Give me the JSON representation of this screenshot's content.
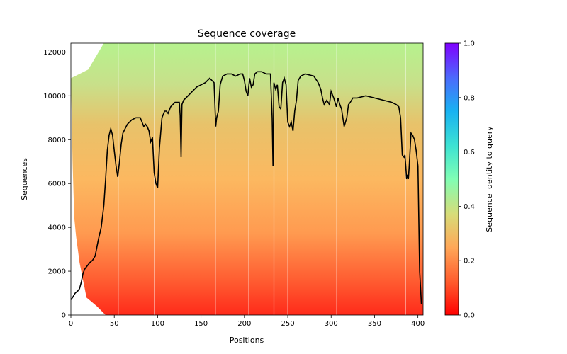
{
  "chart_data": {
    "type": "heatmap",
    "title": "Sequence coverage",
    "xlabel": "Positions",
    "ylabel": "Sequences",
    "xlim": [
      0,
      406
    ],
    "ylim": [
      0,
      12400
    ],
    "xticks": [
      0,
      50,
      100,
      150,
      200,
      250,
      300,
      350,
      400
    ],
    "xtick_labels": [
      "0",
      "50",
      "100",
      "150",
      "200",
      "250",
      "300",
      "350",
      "400"
    ],
    "yticks": [
      0,
      2000,
      4000,
      6000,
      8000,
      10000,
      12000
    ],
    "ytick_labels": [
      "0",
      "2000",
      "4000",
      "6000",
      "8000",
      "10000",
      "12000"
    ],
    "colorbar": {
      "label": "Sequence identity to query",
      "range": [
        0.0,
        1.0
      ],
      "ticks": [
        0.0,
        0.2,
        0.4,
        0.6,
        0.8,
        1.0
      ],
      "tick_labels": [
        "0.0",
        "0.2",
        "0.4",
        "0.6",
        "0.8",
        "1.0"
      ],
      "colormap": "rainbow_r"
    },
    "alignment_start_profile": {
      "y": [
        0,
        400,
        800,
        1200,
        1600,
        2000,
        2400,
        3000,
        3600,
        4400,
        5600,
        7000,
        9000,
        10800,
        11200,
        12400
      ],
      "start_position": [
        40,
        30,
        18,
        16,
        14,
        12,
        10,
        8,
        6,
        4,
        3,
        2,
        1,
        0,
        20,
        38
      ]
    },
    "coverage_line": {
      "name": "coverage",
      "color": "#000000",
      "x": [
        0,
        2,
        5,
        8,
        10,
        12,
        14,
        16,
        18,
        20,
        22,
        25,
        28,
        30,
        32,
        35,
        38,
        40,
        42,
        44,
        46,
        48,
        50,
        52,
        54,
        56,
        58,
        60,
        65,
        70,
        75,
        80,
        82,
        84,
        86,
        88,
        90,
        92,
        94,
        96,
        98,
        100,
        102,
        105,
        108,
        110,
        112,
        115,
        120,
        125,
        126,
        127,
        128,
        130,
        135,
        140,
        145,
        150,
        155,
        160,
        165,
        167,
        168,
        170,
        172,
        175,
        180,
        185,
        190,
        195,
        198,
        200,
        202,
        204,
        206,
        208,
        210,
        212,
        215,
        220,
        225,
        230,
        232,
        233,
        234,
        236,
        238,
        240,
        242,
        244,
        246,
        248,
        250,
        252,
        254,
        256,
        258,
        260,
        262,
        265,
        270,
        280,
        285,
        288,
        290,
        292,
        295,
        298,
        300,
        303,
        306,
        308,
        310,
        312,
        315,
        318,
        320,
        322,
        325,
        330,
        340,
        350,
        360,
        370,
        375,
        378,
        380,
        382,
        384,
        385,
        386,
        387,
        388,
        389,
        390,
        392,
        394,
        396,
        398,
        400,
        402,
        404,
        406
      ],
      "y": [
        700,
        800,
        1000,
        1100,
        1200,
        1500,
        1900,
        2100,
        2200,
        2300,
        2400,
        2500,
        2700,
        3100,
        3500,
        4000,
        5000,
        6200,
        7500,
        8200,
        8500,
        8200,
        7500,
        6800,
        6300,
        7000,
        7800,
        8300,
        8700,
        8900,
        9000,
        9000,
        8800,
        8600,
        8700,
        8600,
        8400,
        7900,
        8100,
        6500,
        6000,
        5800,
        7600,
        9000,
        9300,
        9300,
        9200,
        9500,
        9700,
        9700,
        9100,
        7200,
        9600,
        9800,
        10000,
        10200,
        10400,
        10500,
        10600,
        10800,
        10600,
        8600,
        9000,
        9300,
        10500,
        10900,
        11000,
        11000,
        10900,
        11000,
        11000,
        10700,
        10200,
        10000,
        10800,
        10400,
        10500,
        11000,
        11100,
        11100,
        11000,
        11000,
        9000,
        6800,
        10600,
        10300,
        10500,
        9500,
        9400,
        10600,
        10800,
        10500,
        8800,
        8600,
        8800,
        8400,
        9300,
        9800,
        10700,
        10900,
        11000,
        10900,
        10600,
        10300,
        9900,
        9600,
        9800,
        9600,
        10200,
        9900,
        9500,
        9900,
        9600,
        9400,
        8600,
        9000,
        9600,
        9700,
        9900,
        9900,
        10000,
        9900,
        9800,
        9700,
        9600,
        9500,
        9000,
        7300,
        7200,
        7300,
        6800,
        6200,
        6400,
        6200,
        6800,
        8300,
        8200,
        8000,
        7500,
        6800,
        2000,
        500
      ]
    }
  }
}
